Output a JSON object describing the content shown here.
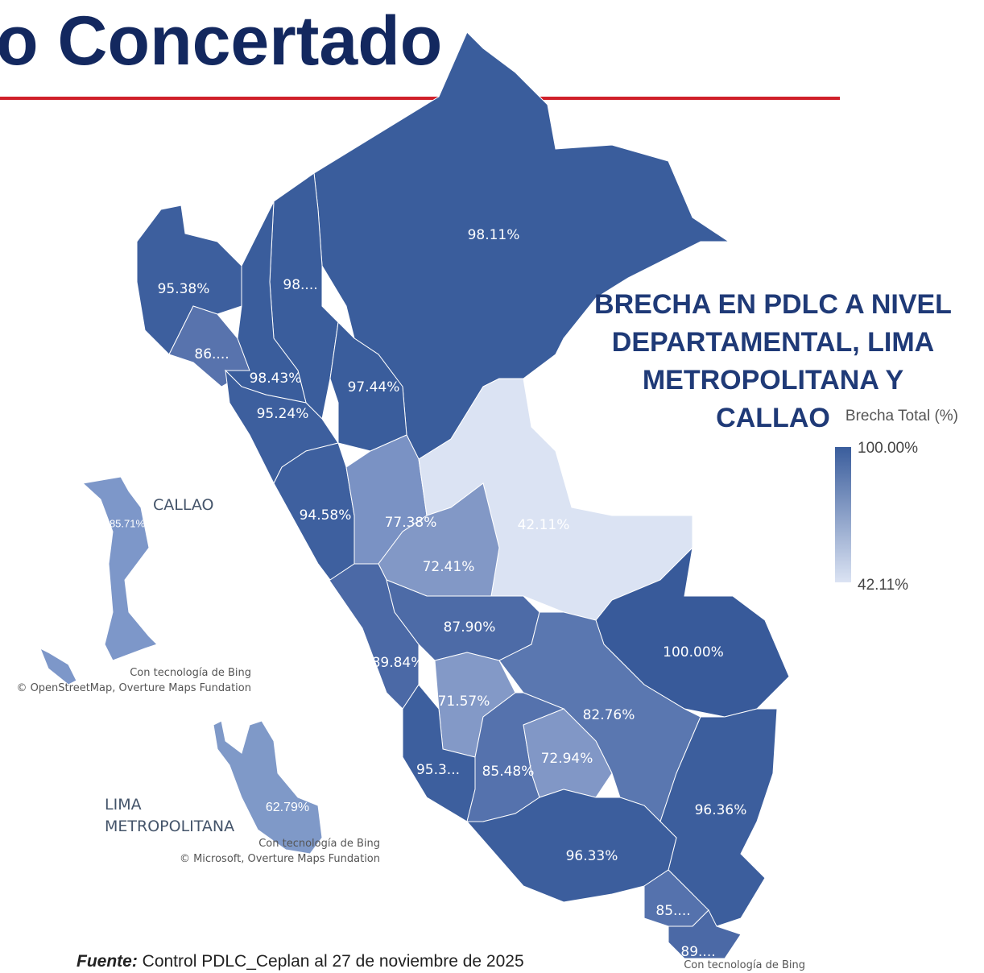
{
  "header": {
    "title": "o Concertado"
  },
  "legend": {
    "title": "BRECHA EN PDLC A NIVEL DEPARTAMENTAL, LIMA METROPOLITANA Y CALLAO",
    "scale_title": "Brecha Total (%)",
    "max": "100.00%",
    "min": "42.11%"
  },
  "regions": [
    "98.11%",
    "98....",
    "95.38%",
    "86....",
    "98.43%",
    "97.44%",
    "95.24%",
    "94.58%",
    "77.38%",
    "42.11%",
    "72.41%",
    "89.84%",
    "87.90%",
    "100.00%",
    "82.76%",
    "71.57%",
    "95.3...",
    "85.48%",
    "72.94%",
    "96.36%",
    "96.33%",
    "85....",
    "89...."
  ],
  "insets": [
    {
      "name": "CALLAO",
      "label": "85.71%",
      "credit": "Con tecnología de Bing",
      "attribution": "© OpenStreetMap, Overture Maps Fundation"
    },
    {
      "name": "LIMA METROPOLITANA",
      "label": "62.79%",
      "credit": "Con tecnología de Bing",
      "attribution": "© Microsoft, Overture Maps Fundation"
    }
  ],
  "map_credit": "Con tecnología de Bing",
  "footer": {
    "source_label": "Fuente:",
    "source_text": " Control PDLC_Ceplan al 27 de noviembre de 2025"
  }
}
